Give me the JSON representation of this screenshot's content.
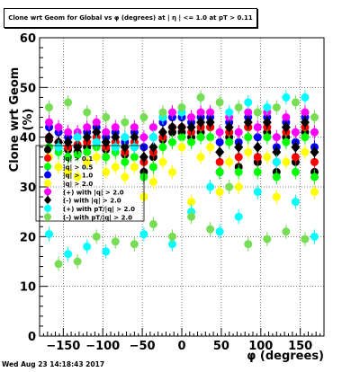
{
  "title": "Clone wrt Geom for Global vs φ (degrees) at | η | <= 1.0 at pT > 0.11",
  "footer": "Wed Aug 23 14:18:43 2017",
  "chart_data": {
    "type": "scatter",
    "title": "Clone wrt Geom for Global vs φ (degrees) at | η | <= 1.0 at pT > 0.11",
    "xlabel": "φ (degrees)",
    "ylabel": "Clone wrt Geom (%)",
    "xlim": [
      -180,
      180
    ],
    "ylim": [
      0,
      60
    ],
    "xticks": [
      -150,
      -100,
      -50,
      0,
      50,
      100,
      150
    ],
    "yticks": [
      0,
      10,
      20,
      30,
      40,
      50,
      60
    ],
    "grid": true,
    "legend_position": "left-middle",
    "series": [
      {
        "name": "",
        "color": "#000000",
        "marker": "circle",
        "x": [
          -168,
          -156,
          -144,
          -132,
          -120,
          -108,
          -96,
          -84,
          -72,
          -60,
          -48,
          -36,
          -24,
          -12,
          0,
          12,
          24,
          36,
          48,
          60,
          72,
          84,
          96,
          108,
          120,
          132,
          144,
          156,
          168
        ],
        "y": [
          39.5,
          38,
          37.5,
          37,
          38,
          39,
          37.5,
          38,
          36.5,
          38,
          33,
          36,
          39.5,
          41,
          41,
          40,
          41,
          42,
          33,
          40,
          34,
          42,
          35,
          41,
          33,
          40,
          35,
          41,
          33
        ]
      },
      {
        "name": "|q| > 0.1",
        "color": "#ff0000",
        "marker": "circle",
        "x": [
          -168,
          -156,
          -144,
          -132,
          -120,
          -108,
          -96,
          -84,
          -72,
          -60,
          -48,
          -36,
          -24,
          -12,
          0,
          12,
          24,
          36,
          48,
          60,
          72,
          84,
          96,
          108,
          120,
          132,
          144,
          156,
          168
        ],
        "y": [
          40,
          39,
          38,
          38.5,
          39,
          40,
          38,
          39,
          37,
          39,
          35,
          37,
          40,
          42,
          42,
          41,
          42,
          42,
          35,
          41,
          36,
          42,
          36,
          42,
          35,
          41,
          36,
          42,
          35
        ]
      },
      {
        "name": "|q| > 0.5",
        "color": "#00ff00",
        "marker": "circle",
        "x": [
          -168,
          -156,
          -144,
          -132,
          -120,
          -108,
          -96,
          -84,
          -72,
          -60,
          -48,
          -36,
          -24,
          -12,
          0,
          12,
          24,
          36,
          48,
          60,
          72,
          84,
          96,
          108,
          120,
          132,
          144,
          156,
          168
        ],
        "y": [
          38,
          37,
          36,
          36.5,
          37,
          38,
          36,
          37,
          35,
          36,
          32,
          34,
          38,
          39,
          40,
          39,
          40,
          40,
          33,
          39,
          33,
          40,
          33,
          40,
          32,
          39,
          33,
          40,
          32
        ]
      },
      {
        "name": "|q| > 1.0",
        "color": "#0000ff",
        "marker": "circle",
        "x": [
          -168,
          -156,
          -144,
          -132,
          -120,
          -108,
          -96,
          -84,
          -72,
          -60,
          -48,
          -36,
          -24,
          -12,
          0,
          12,
          24,
          36,
          48,
          60,
          72,
          84,
          96,
          108,
          120,
          132,
          144,
          156,
          168
        ],
        "y": [
          42,
          41,
          40,
          40,
          41,
          42,
          40,
          41,
          39,
          41,
          38,
          40,
          43,
          44,
          44,
          43,
          44,
          44,
          39,
          43,
          39,
          44,
          40,
          44,
          38,
          43,
          39,
          44,
          38
        ]
      },
      {
        "name": "|q| > 2.0",
        "color": "#ffff00",
        "marker": "circle",
        "x": [
          -168,
          -156,
          -144,
          -132,
          -120,
          -108,
          -96,
          -84,
          -72,
          -60,
          -48,
          -36,
          -24,
          -12,
          0,
          12,
          24,
          36,
          48,
          60,
          72,
          84,
          96,
          108,
          120,
          132,
          144,
          156,
          168
        ],
        "y": [
          36,
          34,
          33,
          32,
          35,
          36,
          33,
          34,
          32,
          34,
          28,
          31,
          35,
          33,
          38,
          27,
          36,
          38,
          29,
          35,
          30,
          37,
          29,
          36,
          28,
          35,
          27,
          37,
          29
        ]
      },
      {
        "name": "(+) with |q| > 2.0",
        "color": "#ff00ff",
        "marker": "circle",
        "x": [
          -168,
          -156,
          -144,
          -132,
          -120,
          -108,
          -96,
          -84,
          -72,
          -60,
          -48,
          -36,
          -24,
          -12,
          0,
          12,
          24,
          36,
          48,
          60,
          72,
          84,
          96,
          108,
          120,
          132,
          144,
          156,
          168
        ],
        "y": [
          43,
          42,
          41,
          41,
          42,
          43,
          41,
          42,
          40,
          42,
          40,
          42,
          44,
          45,
          45,
          44,
          45,
          45,
          41,
          44,
          41,
          45,
          42,
          45,
          40,
          44,
          41,
          45,
          41
        ]
      },
      {
        "name": "(-) with |q| > 2.0",
        "color": "#000000",
        "marker": "diamond",
        "x": [
          -168,
          -156,
          -144,
          -132,
          -120,
          -108,
          -96,
          -84,
          -72,
          -60,
          -48,
          -36,
          -24,
          -12,
          0,
          12,
          24,
          36,
          48,
          60,
          72,
          84,
          96,
          108,
          120,
          132,
          144,
          156,
          168
        ],
        "y": [
          40,
          39,
          39,
          38,
          40,
          41,
          39,
          40,
          38,
          40,
          36,
          38,
          41,
          42,
          42,
          42,
          43,
          43,
          37,
          42,
          38,
          43,
          38,
          43,
          37,
          42,
          38,
          43,
          37
        ]
      },
      {
        "name": "(+) with pT/|q| > 2.0",
        "color": "#00ffff",
        "marker": "circle",
        "x": [
          -168,
          -156,
          -144,
          -132,
          -120,
          -108,
          -96,
          -84,
          -72,
          -60,
          -48,
          -36,
          -24,
          -12,
          0,
          12,
          24,
          36,
          48,
          60,
          72,
          84,
          96,
          108,
          120,
          132,
          144,
          156,
          168
        ],
        "y": [
          20.5,
          38,
          16.5,
          40,
          18,
          39,
          17,
          38,
          40,
          38,
          20.5,
          40,
          44,
          18.5,
          45,
          25,
          48,
          30,
          21,
          45,
          24,
          47,
          29,
          46,
          35,
          48,
          27,
          48,
          20
        ]
      },
      {
        "name": "(-) with pT/|q| > 2.0",
        "color": "#77dd55",
        "marker": "circle",
        "x": [
          -168,
          -156,
          -144,
          -132,
          -120,
          -108,
          -96,
          -84,
          -72,
          -60,
          -48,
          -36,
          -24,
          -12,
          0,
          12,
          24,
          36,
          48,
          60,
          72,
          84,
          96,
          108,
          120,
          132,
          144,
          156,
          168
        ],
        "y": [
          46,
          14.5,
          47,
          15,
          45,
          20,
          44,
          19,
          43,
          18.5,
          44,
          22.5,
          45,
          20,
          46,
          24,
          48,
          21.5,
          47,
          30,
          46,
          18.5,
          45,
          19.5,
          46,
          21,
          47,
          19.5,
          44
        ]
      }
    ]
  }
}
